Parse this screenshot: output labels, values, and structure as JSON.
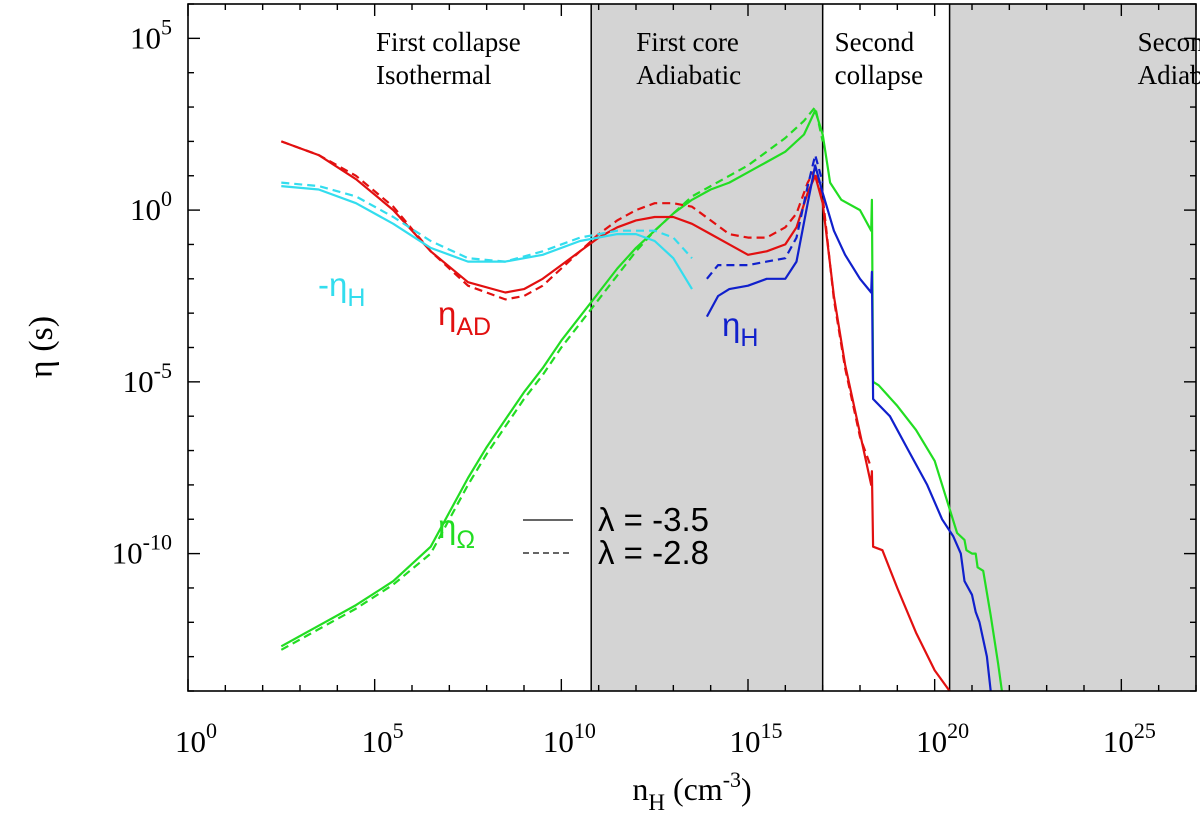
{
  "chart_data": {
    "type": "line",
    "title": "",
    "xlabel": {
      "base": "n",
      "sub": "H",
      "rest": " (cm",
      "sup": "-3",
      "close": ")"
    },
    "ylabel": {
      "symbol": "η",
      "rest": " (s)"
    },
    "x_log": true,
    "y_log": true,
    "xlim_exp": [
      0,
      27
    ],
    "ylim_exp": [
      -14,
      6
    ],
    "x_ticks": [
      {
        "exp": 0,
        "base": "10",
        "sup": "0"
      },
      {
        "exp": 5,
        "base": "10",
        "sup": "5"
      },
      {
        "exp": 10,
        "base": "10",
        "sup": "10"
      },
      {
        "exp": 15,
        "base": "10",
        "sup": "15"
      },
      {
        "exp": 20,
        "base": "10",
        "sup": "20"
      },
      {
        "exp": 25,
        "base": "10",
        "sup": "25"
      }
    ],
    "y_ticks": [
      {
        "exp": 5,
        "base": "10",
        "sup": "5"
      },
      {
        "exp": 0,
        "base": "10",
        "sup": "0"
      },
      {
        "exp": -5,
        "base": "10",
        "sup": "-5"
      },
      {
        "exp": -10,
        "base": "10",
        "sup": "-10"
      }
    ],
    "regions": [
      {
        "from": 0,
        "to": 10.8,
        "shaded": false,
        "label1": "First collapse",
        "label2": "Isothermal"
      },
      {
        "from": 10.8,
        "to": 17.0,
        "shaded": true,
        "label1": "First core",
        "label2": "Adiabatic"
      },
      {
        "from": 17.0,
        "to": 20.4,
        "shaded": false,
        "label1": "Second",
        "label2": "collapse"
      },
      {
        "from": 20.4,
        "to": 27,
        "shaded": true,
        "label1": "Second core",
        "label2": "Adiabatic"
      }
    ],
    "colors": {
      "eta_H_neg": "#33ddee",
      "eta_AD": "#e21010",
      "eta_H": "#1020cc",
      "eta_Omega": "#22dd22",
      "legend_line": "#333333",
      "shade": "#d4d4d4"
    },
    "series": [
      {
        "color_key": "eta_Omega",
        "dash": false,
        "x": [
          2.5,
          3.5,
          4.5,
          5.5,
          6.5,
          7,
          7.5,
          8,
          8.5,
          9,
          9.5,
          10,
          10.5,
          11,
          11.5,
          12,
          12.5,
          13,
          13.5,
          14,
          14.5,
          15,
          15.5,
          16,
          16.5,
          16.8,
          17,
          17.2,
          17.5,
          18,
          18.3,
          18.32,
          18.35,
          18.5,
          19,
          19.5,
          20,
          20.4,
          20.6,
          20.8,
          20.85,
          21,
          21.1,
          21.15,
          21.3,
          21.5,
          21.7,
          21.8
        ],
        "y": [
          -12.7,
          -12.1,
          -11.5,
          -10.8,
          -9.8,
          -8.8,
          -7.8,
          -6.9,
          -6.1,
          -5.3,
          -4.6,
          -3.8,
          -3.1,
          -2.4,
          -1.7,
          -1.1,
          -0.6,
          -0.1,
          0.3,
          0.6,
          0.8,
          1.1,
          1.4,
          1.7,
          2.2,
          2.9,
          2.2,
          0.8,
          0.3,
          0.0,
          -0.6,
          0.3,
          -5.0,
          -5.1,
          -5.7,
          -6.4,
          -7.3,
          -8.7,
          -9.4,
          -9.6,
          -9.9,
          -10.0,
          -10.0,
          -10.4,
          -10.5,
          -11.8,
          -13.2,
          -14.0
        ]
      },
      {
        "color_key": "eta_Omega",
        "dash": true,
        "x": [
          2.5,
          3.5,
          4.5,
          5.5,
          6.5,
          7,
          7.5,
          8,
          8.5,
          9,
          9.5,
          10,
          10.5,
          11,
          11.5,
          12,
          12.5,
          13,
          13.5,
          14,
          14.5,
          15,
          15.5,
          16,
          16.5,
          16.8,
          17
        ],
        "y": [
          -12.8,
          -12.2,
          -11.6,
          -10.9,
          -10.0,
          -9.0,
          -8.0,
          -7.1,
          -6.3,
          -5.5,
          -4.8,
          -4.0,
          -3.3,
          -2.6,
          -1.9,
          -1.2,
          -0.6,
          -0.1,
          0.4,
          0.7,
          1.0,
          1.3,
          1.7,
          2.1,
          2.6,
          3.0,
          2.0
        ]
      },
      {
        "color_key": "eta_AD",
        "dash": false,
        "x": [
          2.5,
          3.5,
          4.5,
          5.5,
          6.5,
          7.5,
          8.5,
          9,
          9.5,
          10,
          10.5,
          11,
          11.5,
          12,
          12.5,
          13,
          13.5,
          14,
          14.5,
          15,
          15.5,
          16,
          16.3,
          16.6,
          16.8,
          17,
          17.3,
          17.6,
          18,
          18.3,
          18.32,
          18.35,
          18.6,
          19,
          19.5,
          20,
          20.4
        ],
        "y": [
          2.0,
          1.6,
          0.9,
          0.0,
          -1.2,
          -2.1,
          -2.4,
          -2.3,
          -2.0,
          -1.6,
          -1.2,
          -0.8,
          -0.5,
          -0.3,
          -0.2,
          -0.2,
          -0.4,
          -0.7,
          -1.0,
          -1.3,
          -1.2,
          -1.0,
          -0.5,
          0.5,
          1.0,
          0.2,
          -2.5,
          -4.5,
          -6.5,
          -8.0,
          -7.6,
          -9.8,
          -9.9,
          -11.0,
          -12.3,
          -13.4,
          -14.0
        ]
      },
      {
        "color_key": "eta_AD",
        "dash": true,
        "x": [
          2.5,
          3.5,
          4.5,
          5.5,
          6.5,
          7.5,
          8.5,
          9,
          9.5,
          10,
          10.5,
          11,
          11.5,
          12,
          12.5,
          13,
          13.5,
          14,
          14.5,
          15,
          15.5,
          16,
          16.3,
          16.6,
          16.8,
          17,
          17.3,
          17.6,
          18,
          18.3
        ],
        "y": [
          2.0,
          1.6,
          1.0,
          0.1,
          -1.2,
          -2.2,
          -2.6,
          -2.5,
          -2.2,
          -1.7,
          -1.2,
          -0.7,
          -0.3,
          0.0,
          0.2,
          0.2,
          0.1,
          -0.3,
          -0.7,
          -0.8,
          -0.8,
          -0.5,
          -0.1,
          0.8,
          1.2,
          0.4,
          -2.6,
          -4.6,
          -6.6,
          -7.5
        ]
      },
      {
        "color_key": "eta_H_neg",
        "dash": false,
        "x": [
          2.5,
          3.5,
          4.5,
          5.5,
          6.5,
          7.5,
          8.5,
          9.5,
          10.5,
          11.5,
          12,
          12.5,
          13,
          13.5
        ],
        "y": [
          0.7,
          0.6,
          0.2,
          -0.4,
          -1.1,
          -1.5,
          -1.5,
          -1.3,
          -0.9,
          -0.7,
          -0.7,
          -0.9,
          -1.4,
          -2.3
        ]
      },
      {
        "color_key": "eta_H_neg",
        "dash": true,
        "x": [
          2.5,
          3.5,
          4.5,
          5.5,
          6.5,
          7.5,
          8.5,
          9.5,
          10.5,
          11.5,
          12,
          12.5,
          13,
          13.5
        ],
        "y": [
          0.8,
          0.7,
          0.4,
          -0.2,
          -0.9,
          -1.4,
          -1.5,
          -1.2,
          -0.8,
          -0.6,
          -0.6,
          -0.6,
          -0.8,
          -1.4
        ]
      },
      {
        "color_key": "eta_H",
        "dash": false,
        "x": [
          13.9,
          14.2,
          14.5,
          15,
          15.5,
          16,
          16.3,
          16.6,
          16.8,
          17,
          17.3,
          17.6,
          18,
          18.3,
          18.32,
          18.35,
          18.8,
          19.3,
          19.8,
          20.2,
          20.5,
          20.7,
          20.8,
          21,
          21.1,
          21.2,
          21.4,
          21.5
        ],
        "y": [
          -3.1,
          -2.5,
          -2.3,
          -2.2,
          -2.0,
          -2.0,
          -1.5,
          0.2,
          1.3,
          0.5,
          -0.6,
          -1.3,
          -2.0,
          -2.4,
          -1.8,
          -5.5,
          -6.0,
          -7.0,
          -8.0,
          -9.0,
          -9.5,
          -10.0,
          -10.8,
          -11.2,
          -11.7,
          -12.0,
          -13.0,
          -14.0
        ]
      },
      {
        "color_key": "eta_H",
        "dash": true,
        "x": [
          13.9,
          14.2,
          14.5,
          15,
          15.5,
          16,
          16.3,
          16.6,
          16.8,
          17
        ],
        "y": [
          -2.0,
          -1.6,
          -1.6,
          -1.6,
          -1.5,
          -1.4,
          -0.8,
          0.7,
          1.6,
          0.8
        ]
      }
    ],
    "curve_labels": [
      {
        "color_key": "eta_H_neg",
        "prefix": "-",
        "symbol": "η",
        "sub": "H"
      },
      {
        "color_key": "eta_AD",
        "prefix": "",
        "symbol": "η",
        "sub": "AD"
      },
      {
        "color_key": "eta_H",
        "prefix": "",
        "symbol": "η",
        "sub": "H"
      },
      {
        "color_key": "eta_Omega",
        "prefix": "",
        "symbol": "η",
        "sub": "Ω"
      }
    ],
    "legend": [
      {
        "dash": false,
        "label": "λ = -3.5"
      },
      {
        "dash": true,
        "label": "λ = -2.8"
      }
    ]
  }
}
